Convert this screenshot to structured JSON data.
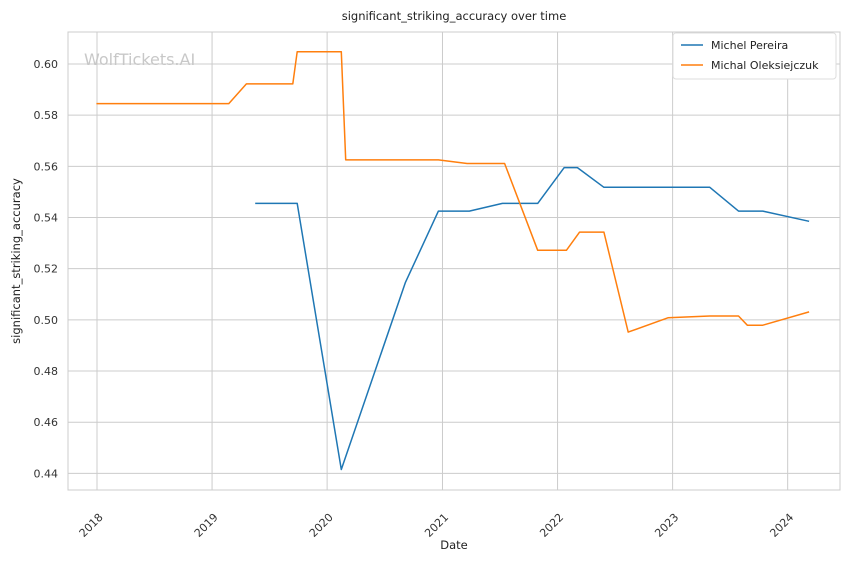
{
  "chart_data": {
    "type": "line",
    "title": "significant_striking_accuracy over time",
    "xlabel": "Date",
    "ylabel": "significant_striking_accuracy",
    "watermark": "WolfTickets.AI",
    "x_ticks": [
      "2018",
      "2019",
      "2020",
      "2021",
      "2022",
      "2023",
      "2024"
    ],
    "y_ticks": [
      "0.44",
      "0.46",
      "0.48",
      "0.50",
      "0.52",
      "0.54",
      "0.56",
      "0.58",
      "0.60"
    ],
    "xlim": [
      "2017-10-01",
      "2024-06-15"
    ],
    "ylim": [
      0.4335,
      0.6125
    ],
    "grid": true,
    "legend_position": "top-right",
    "colors": {
      "Michel Pereira": "#1f77b4",
      "Michal Oleksiejczuk": "#ff7f0e"
    },
    "series": [
      {
        "name": "Michel Pereira",
        "x": [
          "2019-05-18",
          "2019-09-28",
          "2020-02-15",
          "2020-09-05",
          "2020-12-19",
          "2021-03-27",
          "2021-07-10",
          "2021-10-30",
          "2022-01-22",
          "2022-03-05",
          "2022-05-28",
          "2022-12-10",
          "2023-04-29",
          "2023-07-29",
          "2023-10-14",
          "2024-03-09"
        ],
        "y": [
          0.5455,
          0.5455,
          0.4415,
          0.5145,
          0.5425,
          0.5425,
          0.5455,
          0.5455,
          0.5595,
          0.5595,
          0.5518,
          0.5518,
          0.5518,
          0.5425,
          0.5425,
          0.5385
        ]
      },
      {
        "name": "Michal Oleksiejczuk",
        "x": [
          "2017-12-30",
          "2019-02-23",
          "2019-04-20",
          "2019-09-14",
          "2019-09-28",
          "2020-02-15",
          "2020-02-29",
          "2020-12-19",
          "2021-03-20",
          "2021-07-17",
          "2021-10-30",
          "2022-01-29",
          "2022-03-12",
          "2022-05-28",
          "2022-08-13",
          "2022-12-17",
          "2023-04-29",
          "2023-07-29",
          "2023-08-26",
          "2023-10-14",
          "2024-03-09"
        ],
        "y": [
          0.5845,
          0.5845,
          0.5922,
          0.5922,
          0.6048,
          0.6048,
          0.5625,
          0.5625,
          0.5611,
          0.5611,
          0.5272,
          0.5272,
          0.5343,
          0.5343,
          0.4952,
          0.5008,
          0.5015,
          0.5015,
          0.4979,
          0.4979,
          0.5031
        ]
      }
    ]
  }
}
